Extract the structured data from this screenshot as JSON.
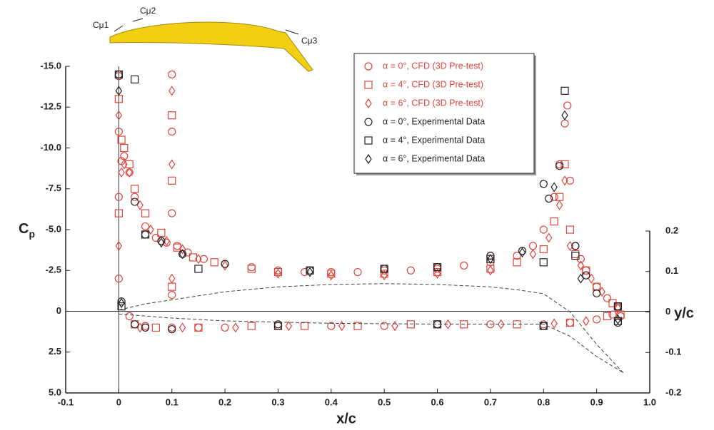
{
  "chart_data": {
    "type": "scatter",
    "xlabel": "x/c",
    "ylabel": "C",
    "ylabel_sub": "p",
    "y2label": "y/c",
    "annotations": [
      "Cμ1",
      "Cμ2",
      "Cμ3"
    ],
    "xlim": [
      -0.1,
      1.0
    ],
    "xticks": [
      -0.1,
      0,
      0.1,
      0.2,
      0.3,
      0.4,
      0.5,
      0.6,
      0.7,
      0.8,
      0.9,
      {
        "value": 1.0,
        "label": "1.0"
      }
    ],
    "ylim": [
      5,
      -15
    ],
    "yticks": [
      {
        "value": -15,
        "label": "-15.0"
      },
      -12.5,
      {
        "value": -10,
        "label": "-10.0"
      },
      -7.5,
      {
        "value": -5,
        "label": "-5.0"
      },
      -2.5,
      0,
      2.5,
      {
        "value": 5,
        "label": "5.0"
      }
    ],
    "y2lim": [
      -0.2,
      0.2
    ],
    "y2ticks": [
      0.2,
      0.1,
      0,
      -0.1,
      -0.2
    ],
    "legend": "upper right",
    "series": [
      {
        "name": "α = 0°, CFD (3D Pre-test)",
        "color": "#e0443c",
        "marker": "circle",
        "x": [
          0,
          0,
          0,
          0,
          0.005,
          0.01,
          0.02,
          0.03,
          0.05,
          0.07,
          0.09,
          0.1,
          0.1,
          0.1,
          0.1,
          0.11,
          0.13,
          0.16,
          0.2,
          0.25,
          0.3,
          0.35,
          0.4,
          0.45,
          0.5,
          0.55,
          0.6,
          0.65,
          0.7,
          0.75,
          0.78,
          0.8,
          0.82,
          0.83,
          0.84,
          0.845,
          0.85,
          0.86,
          0.87,
          0.88,
          0.9,
          0.92,
          0.94,
          0.945,
          0.02,
          0.05,
          0.1,
          0.15,
          0.2,
          0.3,
          0.4,
          0.5,
          0.6,
          0.7,
          0.8,
          0.85,
          0.9,
          0.93
        ],
        "values": [
          -14.4,
          -11,
          -7,
          -2,
          -9.2,
          -9.5,
          -8.5,
          -7.0,
          -5.2,
          -4.5,
          -4.2,
          -1.0,
          -6,
          -11,
          -14.5,
          -4.0,
          -3.6,
          -3.2,
          -2.9,
          -2.7,
          -2.5,
          -2.4,
          -2.4,
          -2.4,
          -2.5,
          -2.5,
          -2.6,
          -2.8,
          -3.0,
          -3.4,
          -4.0,
          -5.0,
          -7.0,
          -9.0,
          -11.5,
          -12.6,
          -8,
          -4,
          -3.2,
          -2.5,
          -1.5,
          -0.8,
          -0.2,
          0.3,
          0.3,
          0.9,
          1.0,
          1.0,
          1.0,
          0.9,
          0.9,
          0.9,
          0.8,
          0.8,
          0.8,
          0.7,
          0.5,
          0.2
        ]
      },
      {
        "name": "α = 4°, CFD (3D Pre-test)",
        "color": "#e0443c",
        "marker": "square",
        "x": [
          0,
          0,
          0.005,
          0.01,
          0.02,
          0.03,
          0.05,
          0.08,
          0.1,
          0.1,
          0.1,
          0.11,
          0.14,
          0.18,
          0.25,
          0.3,
          0.4,
          0.5,
          0.6,
          0.7,
          0.75,
          0.8,
          0.82,
          0.83,
          0.84,
          0.85,
          0.86,
          0.88,
          0.9,
          0.93,
          0.945,
          0.03,
          0.07,
          0.15,
          0.25,
          0.35,
          0.45,
          0.55,
          0.65,
          0.75,
          0.85,
          0.92
        ],
        "values": [
          -13,
          -6,
          -10.5,
          -10,
          -9,
          -7.5,
          -6,
          -4.8,
          -1.5,
          -8,
          -12,
          -3.9,
          -3.3,
          -3.0,
          -2.6,
          -2.4,
          -2.3,
          -2.3,
          -2.4,
          -2.6,
          -3.0,
          -3.8,
          -5.5,
          -7,
          -9,
          -5,
          -3.5,
          -2.5,
          -1.5,
          -0.5,
          0.2,
          0.8,
          1.0,
          1.0,
          0.9,
          0.9,
          0.9,
          0.8,
          0.8,
          0.8,
          0.7,
          0.3
        ]
      },
      {
        "name": "α = 6°, CFD (3D Pre-test)",
        "color": "#e0443c",
        "marker": "diamond",
        "x": [
          0,
          0,
          0.005,
          0.01,
          0.02,
          0.04,
          0.06,
          0.09,
          0.1,
          0.1,
          0.1,
          0.12,
          0.15,
          0.2,
          0.3,
          0.4,
          0.5,
          0.6,
          0.7,
          0.78,
          0.81,
          0.83,
          0.84,
          0.85,
          0.87,
          0.89,
          0.91,
          0.94,
          0.04,
          0.12,
          0.22,
          0.32,
          0.42,
          0.52,
          0.62,
          0.72,
          0.82,
          0.88
        ],
        "values": [
          -12,
          -4,
          -8.5,
          -9,
          -8.5,
          -6.5,
          -5,
          -4.3,
          -2,
          -9,
          -13.5,
          -3.8,
          -3.2,
          -2.8,
          -2.3,
          -2.2,
          -2.2,
          -2.3,
          -2.5,
          -3.5,
          -4.5,
          -6.5,
          -8,
          -4,
          -2.8,
          -2,
          -1.2,
          -0.2,
          1.0,
          1.0,
          1.0,
          0.9,
          0.9,
          0.9,
          0.8,
          0.8,
          0.75,
          0.6
        ]
      },
      {
        "name": "α = 0°, Experimental Data",
        "color": "#222222",
        "marker": "circle",
        "x": [
          0.0,
          0.03,
          0.05,
          0.08,
          0.12,
          0.2,
          0.36,
          0.5,
          0.6,
          0.7,
          0.76,
          0.8,
          0.81,
          0.83,
          0.86,
          0.88,
          0.9,
          0.94,
          0.94,
          0.005,
          0.03,
          0.05,
          0.1,
          0.3,
          0.6,
          0.8
        ],
        "values": [
          -14.5,
          -6.7,
          -4.7,
          -4.3,
          -3.5,
          -2.9,
          -2.5,
          -2.6,
          -2.7,
          -3.4,
          -3.7,
          -7.8,
          -6.9,
          -8.9,
          -4,
          -2.2,
          -1.1,
          -0.3,
          0.7,
          -0.6,
          0.8,
          1.0,
          1.1,
          0.8,
          0.8,
          0.9
        ]
      },
      {
        "name": "α = 4°, Experimental Data",
        "color": "#222222",
        "marker": "square",
        "x": [
          0.0,
          0.03,
          0.05,
          0.15,
          0.36,
          0.5,
          0.6,
          0.7,
          0.8,
          0.84,
          0.86,
          0.94,
          0.005,
          0.3,
          0.6,
          0.8,
          0.94
        ],
        "values": [
          -14.5,
          -14.2,
          -4.7,
          -2.6,
          -2.5,
          -2.6,
          -2.7,
          -3.2,
          -3.0,
          -13.5,
          -3.4,
          -0.3,
          -0.3,
          0.9,
          0.8,
          0.9,
          0.6
        ]
      },
      {
        "name": "α = 6°, Experimental Data",
        "color": "#222222",
        "marker": "diamond",
        "x": [
          0.0,
          0.08,
          0.12,
          0.36,
          0.7,
          0.76,
          0.82,
          0.84,
          0.87,
          0.005,
          0.94
        ],
        "values": [
          -13.5,
          -4.2,
          -3.5,
          -2.4,
          -3.2,
          -3.6,
          -7.6,
          -12,
          -2.0,
          -0.5,
          0.5
        ]
      },
      {
        "type": "line",
        "axis": "y2",
        "color": "#444444",
        "x": [
          0,
          0.05,
          0.1,
          0.2,
          0.3,
          0.4,
          0.5,
          0.6,
          0.7,
          0.75,
          0.8,
          0.85,
          0.9,
          0.95
        ],
        "values": [
          0.005,
          0.02,
          0.03,
          0.05,
          0.062,
          0.068,
          0.07,
          0.068,
          0.062,
          0.055,
          0.045,
          0.0,
          -0.08,
          -0.15
        ]
      },
      {
        "type": "line",
        "axis": "y2",
        "color": "#444444",
        "x": [
          0,
          0.05,
          0.1,
          0.2,
          0.4,
          0.6,
          0.7,
          0.8,
          0.85,
          0.9,
          0.95
        ],
        "values": [
          -0.005,
          -0.01,
          -0.015,
          -0.022,
          -0.028,
          -0.03,
          -0.03,
          -0.03,
          -0.06,
          -0.11,
          -0.15
        ]
      }
    ]
  }
}
